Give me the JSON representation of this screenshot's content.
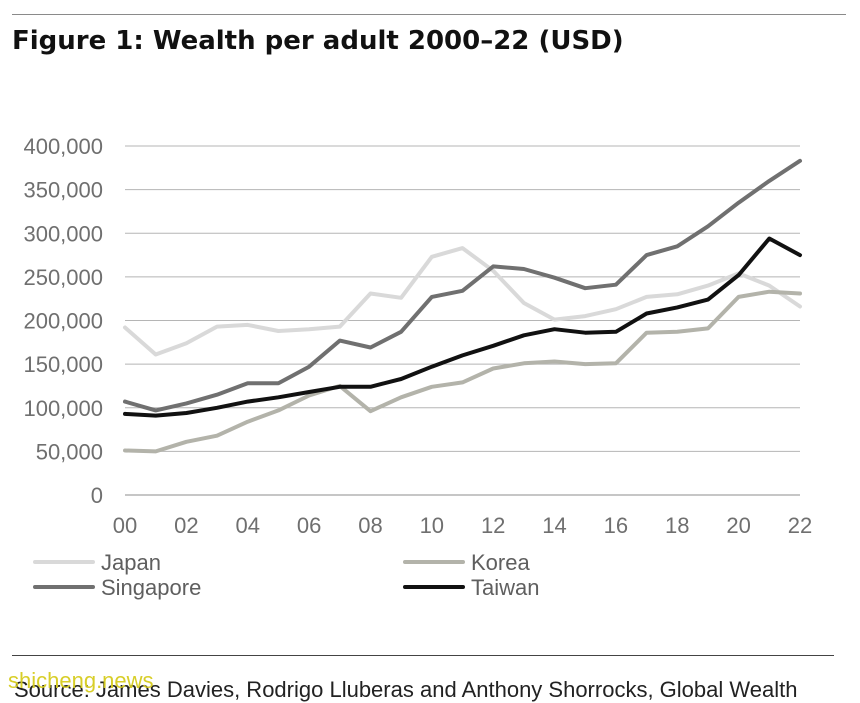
{
  "title": "Figure 1: Wealth per adult 2000–22 (USD)",
  "source": "Source: James Davies, Rodrigo Lluberas and Anthony Shorrocks, Global Wealth",
  "watermark": "shicheng.news",
  "chart_data": {
    "type": "line",
    "title": "Figure 1: Wealth per adult 2000–22 (USD)",
    "xlabel": "",
    "ylabel": "",
    "x": [
      2000,
      2001,
      2002,
      2003,
      2004,
      2005,
      2006,
      2007,
      2008,
      2009,
      2010,
      2011,
      2012,
      2013,
      2014,
      2015,
      2016,
      2017,
      2018,
      2019,
      2020,
      2021,
      2022
    ],
    "x_tick_labels": [
      "00",
      "02",
      "04",
      "06",
      "08",
      "10",
      "12",
      "14",
      "16",
      "18",
      "20",
      "22"
    ],
    "x_tick_values": [
      2000,
      2002,
      2004,
      2006,
      2008,
      2010,
      2012,
      2014,
      2016,
      2018,
      2020,
      2022
    ],
    "y_tick_labels": [
      "0",
      "50,000",
      "100,000",
      "150,000",
      "200,000",
      "250,000",
      "300,000",
      "350,000",
      "400,000"
    ],
    "y_tick_values": [
      0,
      50000,
      100000,
      150000,
      200000,
      250000,
      300000,
      350000,
      400000
    ],
    "xlim": [
      2000,
      2022
    ],
    "ylim": [
      0,
      400000
    ],
    "grid": "horizontal",
    "legend_position": "bottom",
    "series": [
      {
        "name": "Japan",
        "color": "#d9d9d9",
        "values": [
          192000,
          161000,
          174000,
          193000,
          195000,
          188000,
          190000,
          193000,
          231000,
          226000,
          273000,
          283000,
          257000,
          220000,
          201000,
          205000,
          213000,
          227000,
          230000,
          240000,
          254000,
          240000,
          216000
        ]
      },
      {
        "name": "Korea",
        "color": "#b3b3aa",
        "values": [
          51000,
          50000,
          61000,
          68000,
          84000,
          97000,
          114000,
          125000,
          96000,
          112000,
          124000,
          129000,
          145000,
          151000,
          153000,
          150000,
          151000,
          186000,
          187000,
          191000,
          227000,
          233000,
          231000
        ]
      },
      {
        "name": "Singapore",
        "color": "#707070",
        "values": [
          107000,
          97000,
          105000,
          115000,
          128000,
          128000,
          147000,
          177000,
          169000,
          187000,
          227000,
          234000,
          262000,
          259000,
          249000,
          237000,
          241000,
          275000,
          285000,
          308000,
          335000,
          360000,
          383000
        ]
      },
      {
        "name": "Taiwan",
        "color": "#111111",
        "values": [
          93000,
          91000,
          94000,
          100000,
          107000,
          112000,
          118000,
          124000,
          124000,
          133000,
          147000,
          160000,
          171000,
          183000,
          190000,
          186000,
          187000,
          208000,
          215000,
          224000,
          252000,
          294000,
          275000
        ]
      }
    ]
  }
}
